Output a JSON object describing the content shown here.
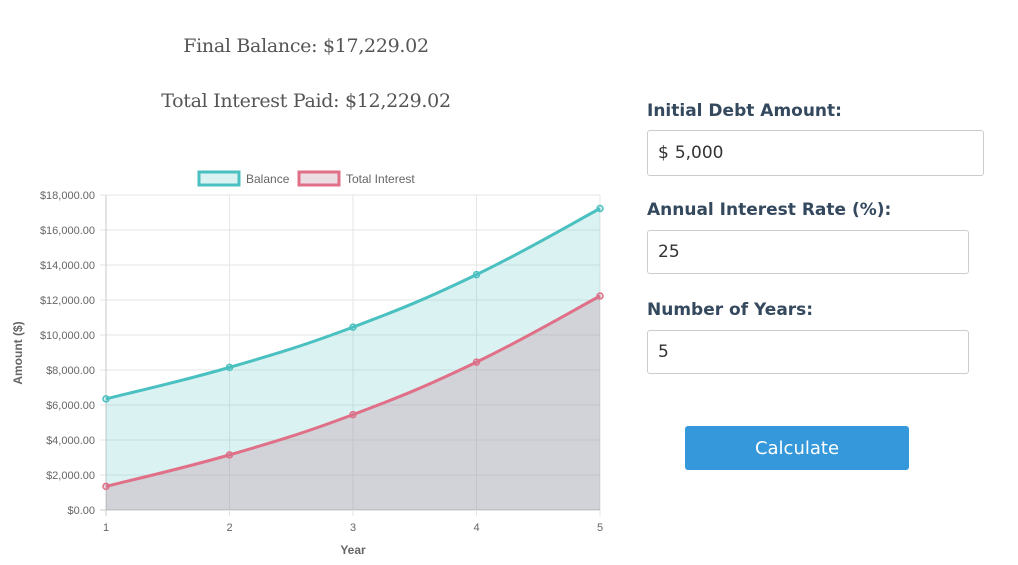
{
  "summary": {
    "final_balance": "Final Balance: $17,229.02",
    "total_interest": "Total Interest Paid: $12,229.02"
  },
  "form": {
    "debt_label": "Initial Debt Amount:",
    "debt_prefix": "$",
    "debt_value": "5,000",
    "rate_label": "Annual Interest Rate (%):",
    "rate_value": "25",
    "years_label": "Number of Years:",
    "years_value": "5",
    "calculate_label": "Calculate"
  },
  "colors": {
    "balance": "#4bc0c0",
    "interest": "#e07088",
    "button": "#3498db",
    "label": "#34495e"
  },
  "chart_data": {
    "type": "area",
    "x": [
      1,
      2,
      3,
      4,
      5
    ],
    "xlabel": "Year",
    "ylabel": "Amount ($)",
    "ylim": [
      0,
      18000
    ],
    "yticks": [
      "$0.00",
      "$2,000.00",
      "$4,000.00",
      "$6,000.00",
      "$8,000.00",
      "$10,000.00",
      "$12,000.00",
      "$14,000.00",
      "$16,000.00",
      "$18,000.00"
    ],
    "legend": "top",
    "grid": true,
    "series": [
      {
        "name": "Balance",
        "values": [
          6350,
          8150,
          10450,
          13450,
          17229.02
        ]
      },
      {
        "name": "Total Interest",
        "values": [
          1350,
          3150,
          5450,
          8450,
          12229.02
        ]
      }
    ]
  }
}
